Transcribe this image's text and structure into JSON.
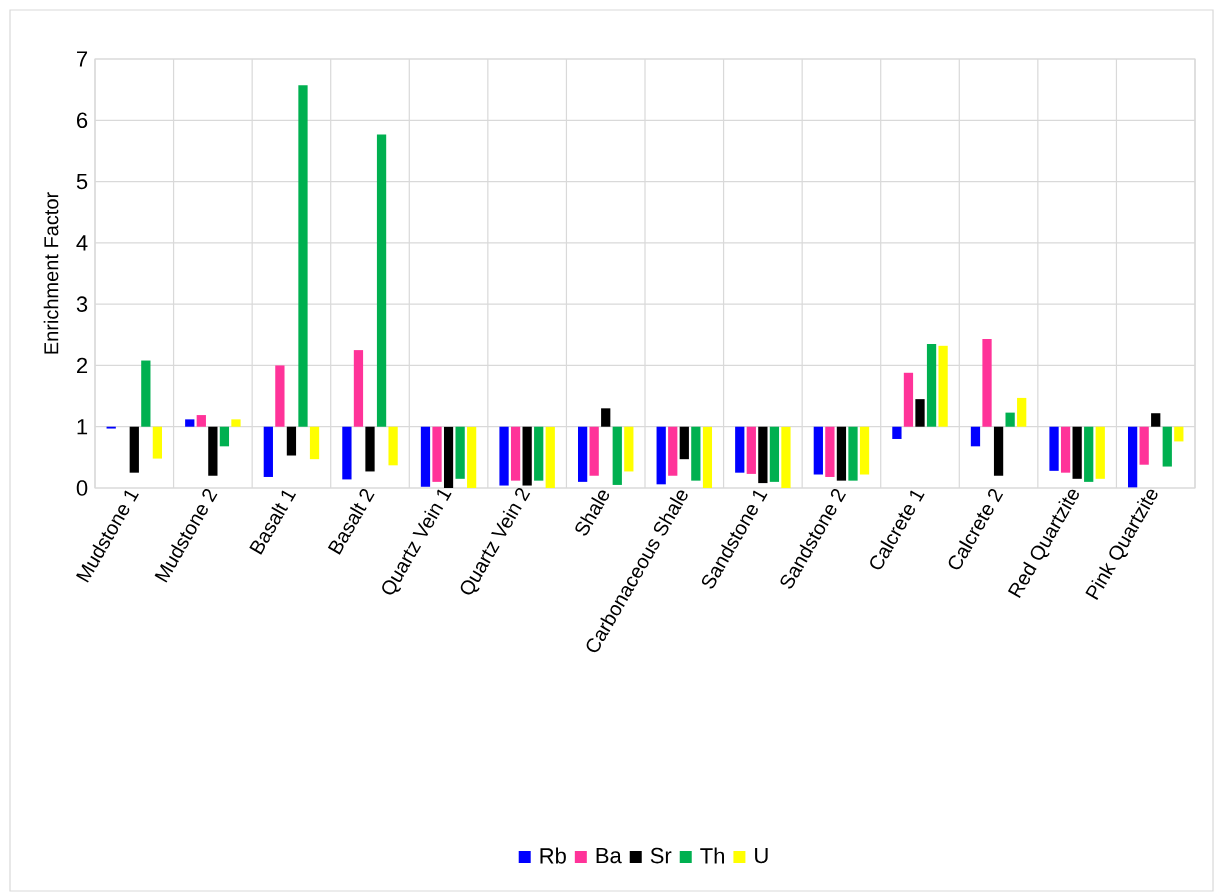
{
  "chart_data": {
    "type": "bar",
    "ylabel": "Enrichment Factor",
    "categories": [
      "Mudstone 1",
      "Mudstone 2",
      "Basalt 1",
      "Basalt 2",
      "Quartz Vein 1",
      "Quartz Vein 2",
      "Shale",
      "Carbonaceous Shale",
      "Sandstone 1",
      "Sandstone 2",
      "Calcrete 1",
      "Calcrete 2",
      "Red Quartzite",
      "Pink Quartzite"
    ],
    "series": [
      {
        "name": "Rb",
        "color": "#0000ff",
        "base": [
          1,
          1,
          1,
          1,
          1,
          1,
          1,
          1,
          1,
          1,
          1,
          1,
          1,
          1
        ],
        "values": [
          -0.03,
          0.12,
          -0.82,
          -0.86,
          -0.98,
          -0.96,
          -0.9,
          -0.94,
          -0.75,
          -0.78,
          -0.2,
          -0.32,
          -0.72,
          -0.99
        ]
      },
      {
        "name": "Ba",
        "color": "#ff3399",
        "base": [
          null,
          1,
          1,
          1,
          1,
          1,
          1,
          1,
          1,
          1,
          1,
          1,
          1,
          1
        ],
        "values": [
          null,
          0.19,
          1.0,
          1.25,
          -0.9,
          -0.88,
          -0.8,
          -0.8,
          -0.77,
          -0.82,
          0.88,
          1.43,
          -0.75,
          -0.62
        ]
      },
      {
        "name": "Sr",
        "color": "#000000",
        "base": [
          1,
          1,
          1,
          1,
          1,
          1,
          1,
          1,
          1,
          1,
          1,
          1,
          1,
          1
        ],
        "values": [
          -0.75,
          -0.8,
          -0.47,
          -0.73,
          -1.0,
          -0.96,
          0.3,
          -0.53,
          -0.92,
          -0.88,
          0.45,
          -0.8,
          -0.85,
          0.22
        ]
      },
      {
        "name": "Th",
        "color": "#00b050",
        "base": [
          1,
          1,
          1,
          1,
          1,
          1,
          1,
          1,
          1,
          1,
          1,
          1,
          1,
          1
        ],
        "values": [
          1.08,
          -0.32,
          5.57,
          4.77,
          -0.85,
          -0.88,
          -0.95,
          -0.88,
          -0.9,
          -0.88,
          1.35,
          0.23,
          -0.9,
          -0.65
        ]
      },
      {
        "name": "U",
        "color": "#ffff00",
        "base": [
          1,
          1,
          1,
          1,
          1,
          1,
          1,
          1,
          1,
          1,
          1,
          1,
          1,
          1
        ],
        "values": [
          -0.52,
          0.12,
          -0.53,
          -0.63,
          -1.0,
          -1.0,
          -0.73,
          -1.0,
          -1.0,
          -0.78,
          1.32,
          0.47,
          -0.85,
          -0.24
        ]
      }
    ],
    "ylim": [
      0,
      7
    ],
    "yticks": [
      0,
      1,
      2,
      3,
      4,
      5,
      6,
      7
    ],
    "grid": true,
    "legend": "bottom"
  }
}
